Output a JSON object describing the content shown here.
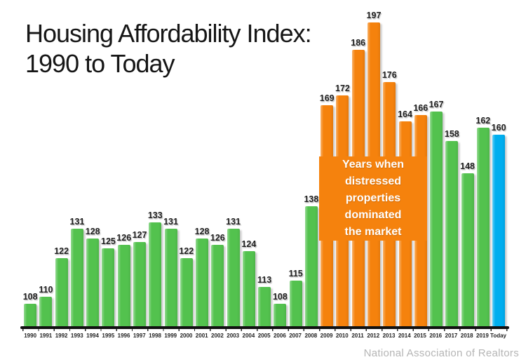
{
  "title": {
    "line1": "Housing Affordability Index:",
    "line2": "1990 to Today"
  },
  "source": "National Association of Realtors",
  "annotation": {
    "lines": [
      "Years when",
      "distressed",
      "properties",
      "dominated",
      "the market"
    ]
  },
  "chart_data": {
    "type": "bar",
    "title": "Housing Affordability Index: 1990 to Today",
    "xlabel": "",
    "ylabel": "",
    "categories": [
      "1990",
      "1991",
      "1992",
      "1993",
      "1994",
      "1995",
      "1996",
      "1997",
      "1998",
      "1999",
      "2000",
      "2001",
      "2002",
      "2003",
      "2004",
      "2005",
      "2006",
      "2007",
      "2008",
      "2009",
      "2010",
      "2011",
      "2012",
      "2013",
      "2014",
      "2015",
      "2016",
      "2017",
      "2018",
      "2019",
      "Today"
    ],
    "values": [
      108,
      110,
      122,
      131,
      128,
      125,
      126,
      127,
      133,
      131,
      122,
      128,
      126,
      131,
      124,
      113,
      108,
      115,
      138,
      169,
      172,
      186,
      197,
      176,
      164,
      166,
      167,
      158,
      148,
      162,
      160
    ],
    "bar_color_keys": [
      "green",
      "green",
      "green",
      "green",
      "green",
      "green",
      "green",
      "green",
      "green",
      "green",
      "green",
      "green",
      "green",
      "green",
      "green",
      "green",
      "green",
      "green",
      "green",
      "orange",
      "orange",
      "orange",
      "orange",
      "orange",
      "orange",
      "orange",
      "green",
      "green",
      "green",
      "green",
      "blue"
    ],
    "colors": {
      "green": "#53C24E",
      "orange": "#F5820D",
      "blue": "#00AEEF",
      "axis": "#111111"
    },
    "ylim": [
      101,
      197
    ],
    "grid": false,
    "legend": false,
    "value_labels": true,
    "highlight_note": "Years when distressed properties dominated the market",
    "highlight_years": [
      "2009",
      "2010",
      "2011",
      "2012",
      "2013",
      "2014",
      "2015"
    ]
  }
}
